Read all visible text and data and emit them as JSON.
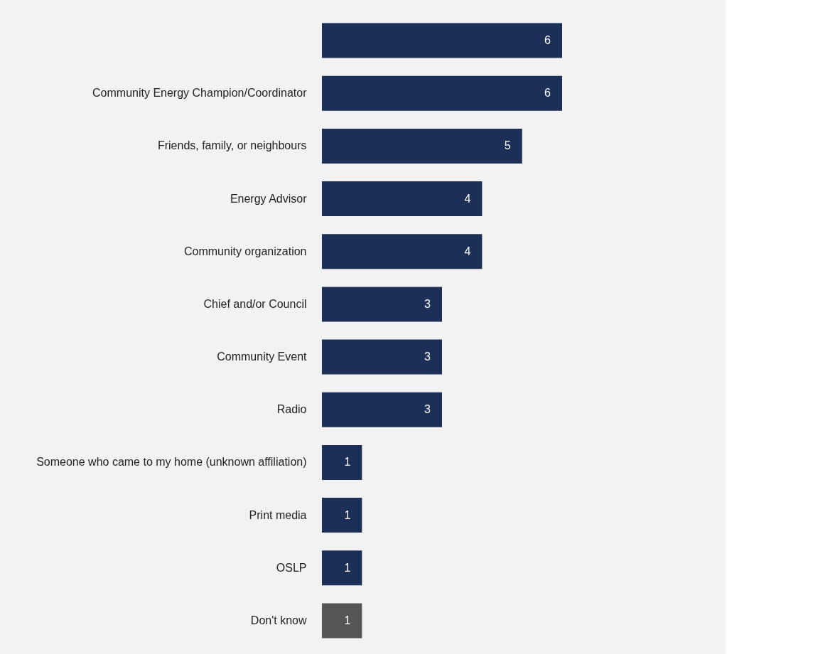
{
  "chart_data": {
    "type": "bar",
    "orientation": "horizontal",
    "data_labels": true,
    "categories": [
      null,
      "Community Energy Champion/Coordinator",
      "Friends, family, or neighbours",
      "Energy Advisor",
      "Community organization",
      "Chief and/or Council",
      "Community Event",
      "Radio",
      "Someone who came to my home (unknown affiliation)",
      "Print media",
      "OSLP",
      "Don't know"
    ],
    "values": [
      6,
      6,
      5,
      4,
      4,
      3,
      3,
      3,
      1,
      1,
      1,
      1
    ],
    "colors": [
      "#1b2f57",
      "#1b2f57",
      "#1b2f57",
      "#1b2f57",
      "#1b2f57",
      "#1b2f57",
      "#1b2f57",
      "#1b2f57",
      "#1b2f57",
      "#1b2f57",
      "#1b2f57",
      "#555555"
    ]
  }
}
